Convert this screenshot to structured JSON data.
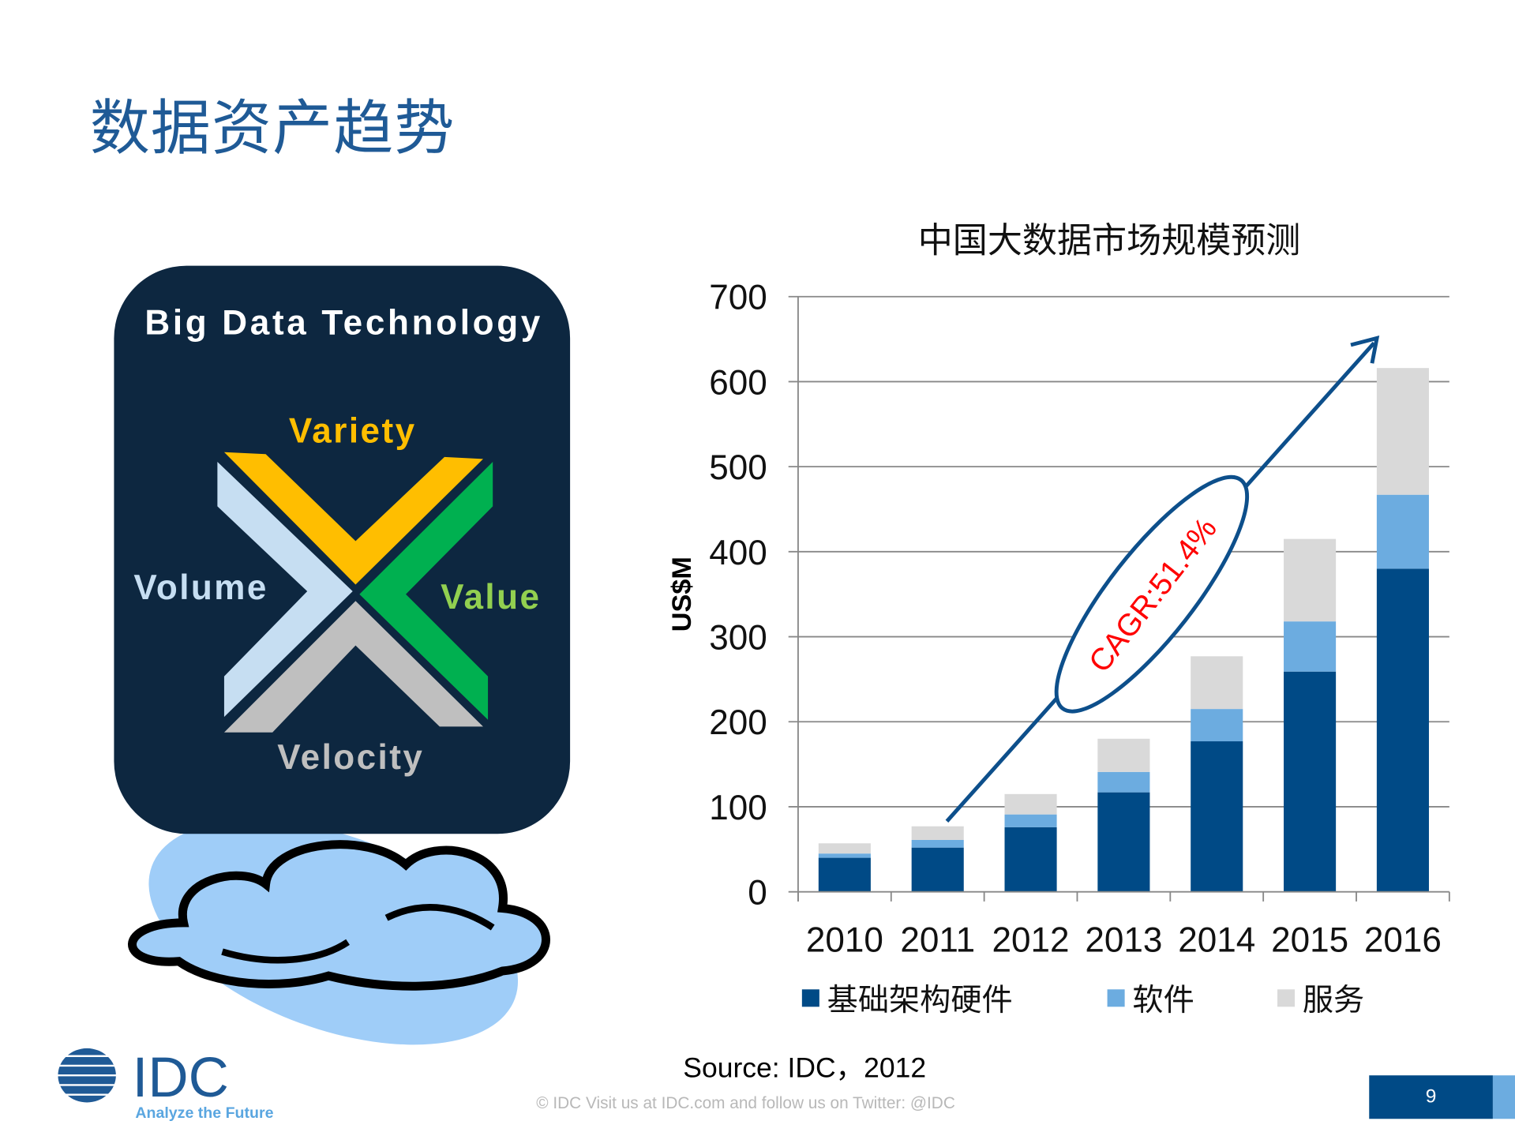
{
  "page": {
    "title": "数据资产趋势",
    "source": "Source: IDC，2012",
    "footer": "© IDC   Visit us at IDC.com and follow us on Twitter: @IDC",
    "page_number": "9"
  },
  "logo": {
    "text": "IDC",
    "tagline": "Analyze the Future"
  },
  "graphic": {
    "title": "Big Data Technology",
    "labels": {
      "top": "Variety",
      "left": "Volume",
      "right": "Value",
      "bottom": "Velocity"
    }
  },
  "colors": {
    "hardware": "#004a86",
    "software": "#6cace0",
    "services": "#d9d9d9",
    "brand": "#1f5a96",
    "cagr": "#ff0000"
  },
  "chart_data": {
    "type": "bar",
    "stacked": true,
    "title": "中国大数据市场规模预测",
    "ylabel": "US$M",
    "xlabel": "",
    "ylim": [
      0,
      700
    ],
    "yticks": [
      0,
      100,
      200,
      300,
      400,
      500,
      600,
      700
    ],
    "grid": true,
    "legend_position": "bottom",
    "categories": [
      "2010",
      "2011",
      "2012",
      "2013",
      "2014",
      "2015",
      "2016"
    ],
    "series": [
      {
        "name": "基础架构硬件",
        "values": [
          40,
          52,
          76,
          117,
          177,
          259,
          380
        ]
      },
      {
        "name": "软件",
        "values": [
          5,
          9,
          15,
          24,
          38,
          59,
          87
        ]
      },
      {
        "name": "服务",
        "values": [
          12,
          16,
          24,
          39,
          62,
          97,
          149
        ]
      }
    ],
    "annotation": "CAGR:51.4%"
  }
}
